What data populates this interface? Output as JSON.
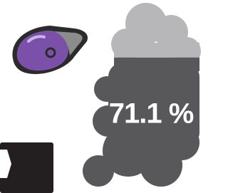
{
  "gauge": {
    "value": 71.1,
    "label": "71.1 %"
  }
}
